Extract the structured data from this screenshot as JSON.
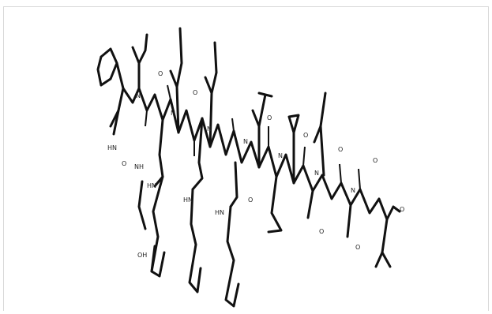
{
  "diagram": {
    "atom_labels": {
      "NH": "NH",
      "HN": "HN",
      "N": "N",
      "O": "O",
      "OH": "OH"
    }
  }
}
